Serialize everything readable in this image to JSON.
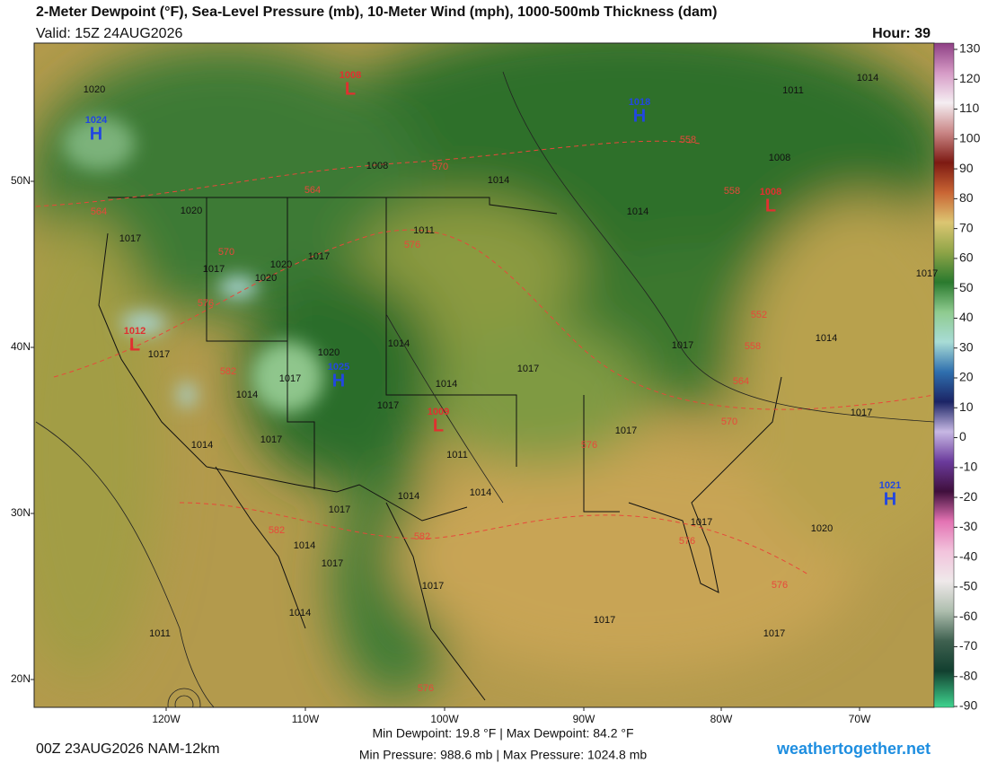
{
  "header": {
    "title": "2-Meter Dewpoint (°F), Sea-Level Pressure (mb), 10-Meter Wind (mph), 1000-500mb Thickness (dam)",
    "valid": "Valid: 15Z 24AUG2026",
    "hour": "Hour: 39"
  },
  "colorbar": {
    "ticks": [
      130,
      120,
      110,
      100,
      90,
      80,
      70,
      60,
      50,
      40,
      30,
      20,
      10,
      0,
      -10,
      -20,
      -30,
      -40,
      -50,
      -60,
      -70,
      -80,
      -90
    ]
  },
  "axes": {
    "lat_labels": [
      "50N",
      "40N",
      "30N",
      "20N"
    ],
    "lon_labels": [
      "120W",
      "110W",
      "100W",
      "90W",
      "80W",
      "70W"
    ]
  },
  "centers": [
    {
      "letter": "H",
      "value": "1024"
    },
    {
      "letter": "H",
      "value": "1018"
    },
    {
      "letter": "H",
      "value": "1025"
    },
    {
      "letter": "H",
      "value": "1021"
    },
    {
      "letter": "L",
      "value": "1008"
    },
    {
      "letter": "L",
      "value": "1008"
    },
    {
      "letter": "L",
      "value": "1012"
    },
    {
      "letter": "L",
      "value": "1009"
    }
  ],
  "isobar_labels": [
    "1020",
    "1011",
    "1014",
    "1008",
    "1008",
    "1014",
    "1020",
    "1011",
    "1017",
    "1014",
    "1017",
    "1020",
    "1017",
    "1020",
    "1017",
    "1014",
    "1020",
    "1017",
    "1014",
    "1017",
    "1017",
    "1017",
    "1014",
    "1014",
    "1017",
    "1017",
    "1017",
    "1017",
    "1014",
    "1011",
    "1014",
    "1014",
    "1017",
    "1017",
    "1020",
    "1014",
    "1017",
    "1017",
    "1017",
    "1014",
    "1011",
    "1017"
  ],
  "thickness_labels": [
    "564",
    "570",
    "558",
    "558",
    "564",
    "570",
    "576",
    "576",
    "552",
    "558",
    "582",
    "564",
    "570",
    "576",
    "582",
    "582",
    "576",
    "576",
    "576"
  ],
  "footer": {
    "run": "00Z 23AUG2026 NAM-12km",
    "dewpoint_stats": "Min Dewpoint:  19.8 °F | Max Dewpoint:  84.2 °F",
    "pressure_stats": "Min Pressure: 988.6 mb | Max Pressure: 1024.8 mb",
    "site": "weathertogether.net"
  }
}
